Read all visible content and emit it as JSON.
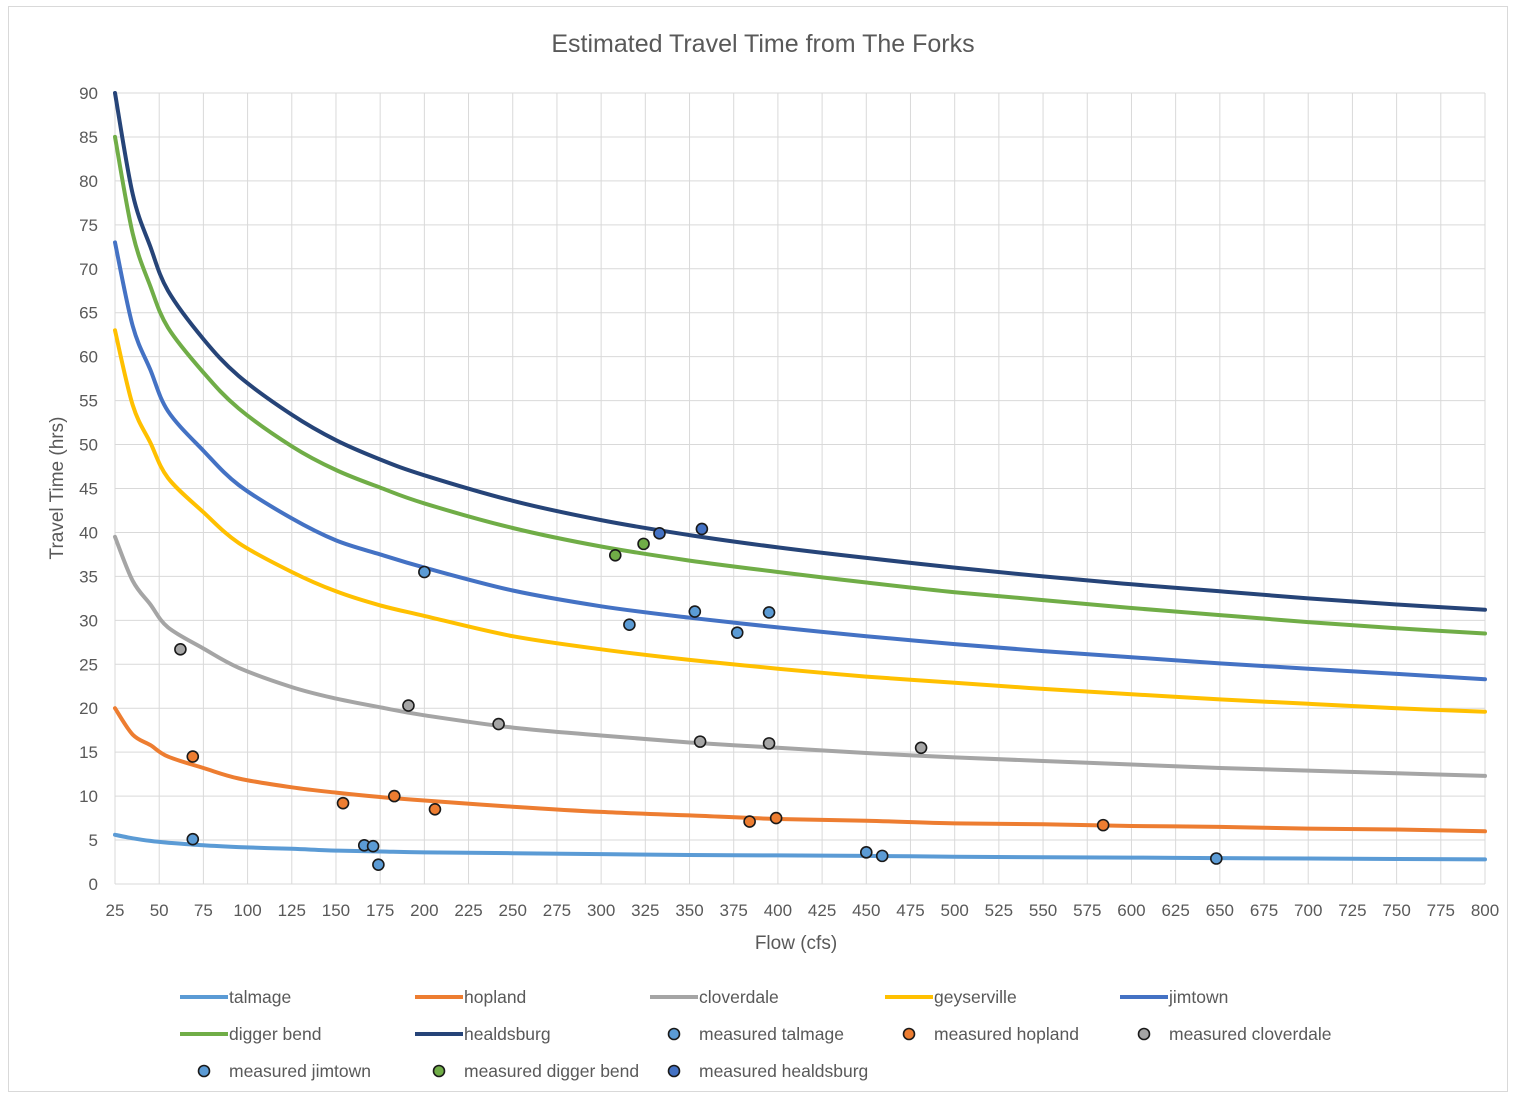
{
  "chart_data": {
    "type": "line",
    "title": "Estimated Travel Time from The Forks",
    "xlabel": "Flow (cfs)",
    "ylabel": "Travel Time (hrs)",
    "xlim": [
      25,
      800
    ],
    "ylim": [
      0,
      90
    ],
    "x_ticks": [
      "25",
      "50",
      "75",
      "100",
      "125",
      "150",
      "175",
      "200",
      "225",
      "250",
      "275",
      "300",
      "325",
      "350",
      "375",
      "400",
      "425",
      "450",
      "475",
      "500",
      "525",
      "550",
      "575",
      "600",
      "625",
      "650",
      "675",
      "700",
      "725",
      "750",
      "775",
      "800"
    ],
    "y_ticks": [
      "0",
      "5",
      "10",
      "15",
      "20",
      "25",
      "30",
      "35",
      "40",
      "45",
      "50",
      "55",
      "60",
      "65",
      "70",
      "75",
      "80",
      "85",
      "90"
    ],
    "grid": true,
    "legend_position": "bottom",
    "x": [
      25,
      35,
      45,
      55,
      75,
      95,
      125,
      150,
      175,
      200,
      250,
      300,
      350,
      400,
      450,
      500,
      550,
      600,
      650,
      700,
      750,
      800
    ],
    "series": [
      {
        "name": "talmage",
        "color": "#5b9bd5",
        "values": [
          5.6,
          5.2,
          4.9,
          4.7,
          4.4,
          4.2,
          4.0,
          3.8,
          3.7,
          3.6,
          3.5,
          3.4,
          3.3,
          3.25,
          3.2,
          3.1,
          3.05,
          3.0,
          2.95,
          2.9,
          2.85,
          2.8
        ]
      },
      {
        "name": "hopland",
        "color": "#ed7d31",
        "values": [
          20,
          17,
          15.8,
          14.5,
          13.2,
          12.0,
          11.0,
          10.4,
          9.9,
          9.5,
          8.8,
          8.2,
          7.8,
          7.4,
          7.2,
          6.9,
          6.8,
          6.6,
          6.5,
          6.3,
          6.2,
          6.0
        ]
      },
      {
        "name": "cloverdale",
        "color": "#a5a5a5",
        "values": [
          39.5,
          34.5,
          31.8,
          29.2,
          26.8,
          24.6,
          22.4,
          21.1,
          20.1,
          19.2,
          17.8,
          16.9,
          16.1,
          15.5,
          14.9,
          14.4,
          14.0,
          13.6,
          13.2,
          12.9,
          12.6,
          12.3
        ]
      },
      {
        "name": "geyserville",
        "color": "#ffc000",
        "values": [
          63,
          54.5,
          50.2,
          46.2,
          42.3,
          38.8,
          35.5,
          33.3,
          31.7,
          30.5,
          28.2,
          26.7,
          25.5,
          24.5,
          23.6,
          22.9,
          22.2,
          21.6,
          21.0,
          20.5,
          20.0,
          19.6
        ]
      },
      {
        "name": "jimtown",
        "color": "#4472c4",
        "values": [
          73,
          63.5,
          58.5,
          53.8,
          49.3,
          45.4,
          41.6,
          39.1,
          37.5,
          36.0,
          33.4,
          31.6,
          30.3,
          29.2,
          28.2,
          27.3,
          26.5,
          25.8,
          25.1,
          24.5,
          23.9,
          23.3
        ]
      },
      {
        "name": "digger bend",
        "color": "#70ad47",
        "values": [
          85,
          74,
          68,
          63.3,
          58.2,
          54.1,
          49.8,
          47.1,
          45.1,
          43.3,
          40.5,
          38.4,
          36.8,
          35.5,
          34.3,
          33.2,
          32.3,
          31.4,
          30.6,
          29.8,
          29.1,
          28.5
        ]
      },
      {
        "name": "healdsburg",
        "color": "#264478",
        "values": [
          90,
          78.5,
          72.5,
          67.5,
          62.0,
          57.8,
          53.4,
          50.5,
          48.3,
          46.5,
          43.6,
          41.4,
          39.7,
          38.3,
          37.1,
          36.0,
          35.0,
          34.1,
          33.3,
          32.5,
          31.8,
          31.2
        ]
      }
    ],
    "scatter": [
      {
        "name": "measured talmage",
        "color": "#5b9bd5",
        "points": [
          [
            69,
            5.1
          ],
          [
            166,
            4.4
          ],
          [
            171,
            4.3
          ],
          [
            174,
            2.2
          ],
          [
            450,
            3.6
          ],
          [
            459,
            3.2
          ],
          [
            648,
            2.9
          ]
        ]
      },
      {
        "name": "measured hopland",
        "color": "#ed7d31",
        "points": [
          [
            69,
            14.5
          ],
          [
            154,
            9.2
          ],
          [
            183,
            10.0
          ],
          [
            206,
            8.5
          ],
          [
            384,
            7.1
          ],
          [
            399,
            7.5
          ],
          [
            584,
            6.7
          ]
        ]
      },
      {
        "name": "measured cloverdale",
        "color": "#a5a5a5",
        "points": [
          [
            62,
            26.7
          ],
          [
            191,
            20.3
          ],
          [
            242,
            18.2
          ],
          [
            356,
            16.2
          ],
          [
            395,
            16.0
          ],
          [
            481,
            15.5
          ]
        ]
      },
      {
        "name": "measured jimtown",
        "color": "#5b9bd5",
        "points": [
          [
            200,
            35.5
          ],
          [
            316,
            29.5
          ],
          [
            353,
            31.0
          ],
          [
            377,
            28.6
          ],
          [
            395,
            30.9
          ]
        ]
      },
      {
        "name": "measured digger bend",
        "color": "#70ad47",
        "points": [
          [
            308,
            37.4
          ],
          [
            324,
            38.7
          ]
        ]
      },
      {
        "name": "measured healdsburg",
        "color": "#4472c4",
        "points": [
          [
            333,
            39.9
          ],
          [
            357,
            40.4
          ]
        ]
      }
    ]
  }
}
